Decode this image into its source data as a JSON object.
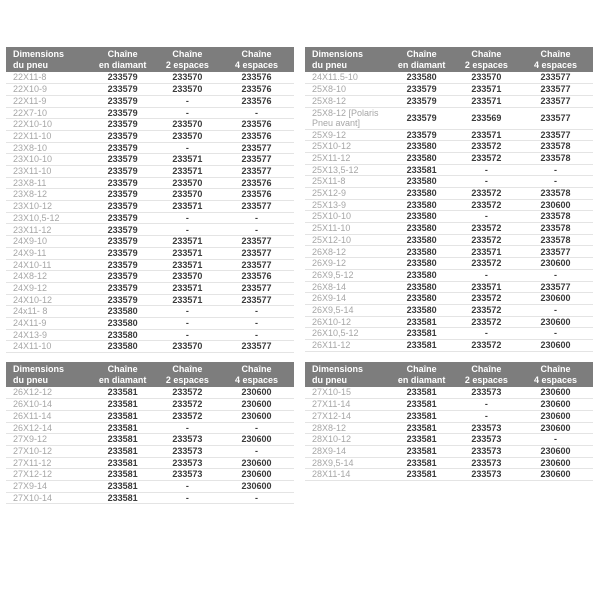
{
  "colors": {
    "page_bg": "#ffffff",
    "header_bg": "#7d7d7d",
    "header_text": "#ffffff",
    "dimension_text": "#a6a6a6",
    "value_text": "#3b3b3b",
    "row_border": "#e4e4e4"
  },
  "columns": [
    {
      "key": "dimensions",
      "line1": "Dimensions",
      "line2": "du pneu"
    },
    {
      "key": "diamond-chain",
      "line1": "Chaîne",
      "line2": "en diamant"
    },
    {
      "key": "chain-2-spaces",
      "line1": "Chaîne",
      "line2": "2 espaces"
    },
    {
      "key": "chain-4-spaces",
      "line1": "Chaîne",
      "line2": "4 espaces"
    }
  ],
  "tables": [
    {
      "position": "top-left",
      "rows": [
        [
          "22X11-8",
          "233579",
          "233570",
          "233576"
        ],
        [
          "22X10-9",
          "233579",
          "233570",
          "233576"
        ],
        [
          "22X11-9",
          "233579",
          "-",
          "233576"
        ],
        [
          "22X7-10",
          "233579",
          "-",
          "-"
        ],
        [
          "22X10-10",
          "233579",
          "233570",
          "233576"
        ],
        [
          "22X11-10",
          "233579",
          "233570",
          "233576"
        ],
        [
          "23X8-10",
          "233579",
          "-",
          "233577"
        ],
        [
          "23X10-10",
          "233579",
          "233571",
          "233577"
        ],
        [
          "23X11-10",
          "233579",
          "233571",
          "233577"
        ],
        [
          "23X8-11",
          "233579",
          "233570",
          "233576"
        ],
        [
          "23X8-12",
          "233579",
          "233570",
          "233576"
        ],
        [
          "23X10-12",
          "233579",
          "233571",
          "233577"
        ],
        [
          "23X10,5-12",
          "233579",
          "-",
          "-"
        ],
        [
          "23X11-12",
          "233579",
          "-",
          "-"
        ],
        [
          "24X9-10",
          "233579",
          "233571",
          "233577"
        ],
        [
          "24X9-11",
          "233579",
          "233571",
          "233577"
        ],
        [
          "24X10-11",
          "233579",
          "233571",
          "233577"
        ],
        [
          "24X8-12",
          "233579",
          "233570",
          "233576"
        ],
        [
          "24X9-12",
          "233579",
          "233571",
          "233577"
        ],
        [
          "24X10-12",
          "233579",
          "233571",
          "233577"
        ],
        [
          "24x11- 8",
          "233580",
          "-",
          "-"
        ],
        [
          "24X11-9",
          "233580",
          "-",
          "-"
        ],
        [
          "24X13-9",
          "233580",
          "-",
          "-"
        ],
        [
          "24X11-10",
          "233580",
          "233570",
          "233577"
        ]
      ]
    },
    {
      "position": "top-right",
      "rows": [
        [
          "24X11.5-10",
          "233580",
          "233570",
          "233577"
        ],
        [
          "25X8-10",
          "233579",
          "233571",
          "233577"
        ],
        [
          "25X8-12",
          "233579",
          "233571",
          "233577"
        ],
        [
          "25X8-12 [Polaris Pneu avant]",
          "233579",
          "233569",
          "233577"
        ],
        [
          "25X9-12",
          "233579",
          "233571",
          "233577"
        ],
        [
          "25X10-12",
          "233580",
          "233572",
          "233578"
        ],
        [
          "25X11-12",
          "233580",
          "233572",
          "233578"
        ],
        [
          "25X13,5-12",
          "233581",
          "-",
          "-"
        ],
        [
          "25X11-8",
          "233580",
          "-",
          "-"
        ],
        [
          "25X12-9",
          "233580",
          "233572",
          "233578"
        ],
        [
          "25X13-9",
          "233580",
          "233572",
          "230600"
        ],
        [
          "25X10-10",
          "233580",
          "-",
          "233578"
        ],
        [
          "25X11-10",
          "233580",
          "233572",
          "233578"
        ],
        [
          "25X12-10",
          "233580",
          "233572",
          "233578"
        ],
        [
          "26X8-12",
          "233580",
          "233571",
          "233577"
        ],
        [
          "26X9-12",
          "233580",
          "233572",
          "230600"
        ],
        [
          "26X9,5-12",
          "233580",
          "-",
          "-"
        ],
        [
          "26X8-14",
          "233580",
          "233571",
          "233577"
        ],
        [
          "26X9-14",
          "233580",
          "233572",
          "230600"
        ],
        [
          "26X9,5-14",
          "233580",
          "233572",
          "-"
        ],
        [
          "26X10-12",
          "233581",
          "233572",
          "230600"
        ],
        [
          "26X10,5-12",
          "233581",
          "-",
          "-"
        ],
        [
          "26X11-12",
          "233581",
          "233572",
          "230600"
        ]
      ]
    },
    {
      "position": "bottom-left",
      "rows": [
        [
          "26X12-12",
          "233581",
          "233572",
          "230600"
        ],
        [
          "26X10-14",
          "233581",
          "233572",
          "230600"
        ],
        [
          "26X11-14",
          "233581",
          "233572",
          "230600"
        ],
        [
          "26X12-14",
          "233581",
          "-",
          "-"
        ],
        [
          "27X9-12",
          "233581",
          "233573",
          "230600"
        ],
        [
          "27X10-12",
          "233581",
          "233573",
          "-"
        ],
        [
          "27X11-12",
          "233581",
          "233573",
          "230600"
        ],
        [
          "27X12-12",
          "233581",
          "233573",
          "230600"
        ],
        [
          "27X9-14",
          "233581",
          "-",
          "230600"
        ],
        [
          "27X10-14",
          "233581",
          "-",
          "-"
        ]
      ]
    },
    {
      "position": "bottom-right",
      "rows": [
        [
          "27X10-15",
          "233581",
          "233573",
          "230600"
        ],
        [
          "27X11-14",
          "233581",
          "-",
          "230600"
        ],
        [
          "27X12-14",
          "233581",
          "-",
          "230600"
        ],
        [
          "28X8-12",
          "233581",
          "233573",
          "230600"
        ],
        [
          "28X10-12",
          "233581",
          "233573",
          "-"
        ],
        [
          "28X9-14",
          "233581",
          "233573",
          "230600"
        ],
        [
          "28X9,5-14",
          "233581",
          "233573",
          "230600"
        ],
        [
          "28X11-14",
          "233581",
          "233573",
          "230600"
        ]
      ]
    }
  ]
}
